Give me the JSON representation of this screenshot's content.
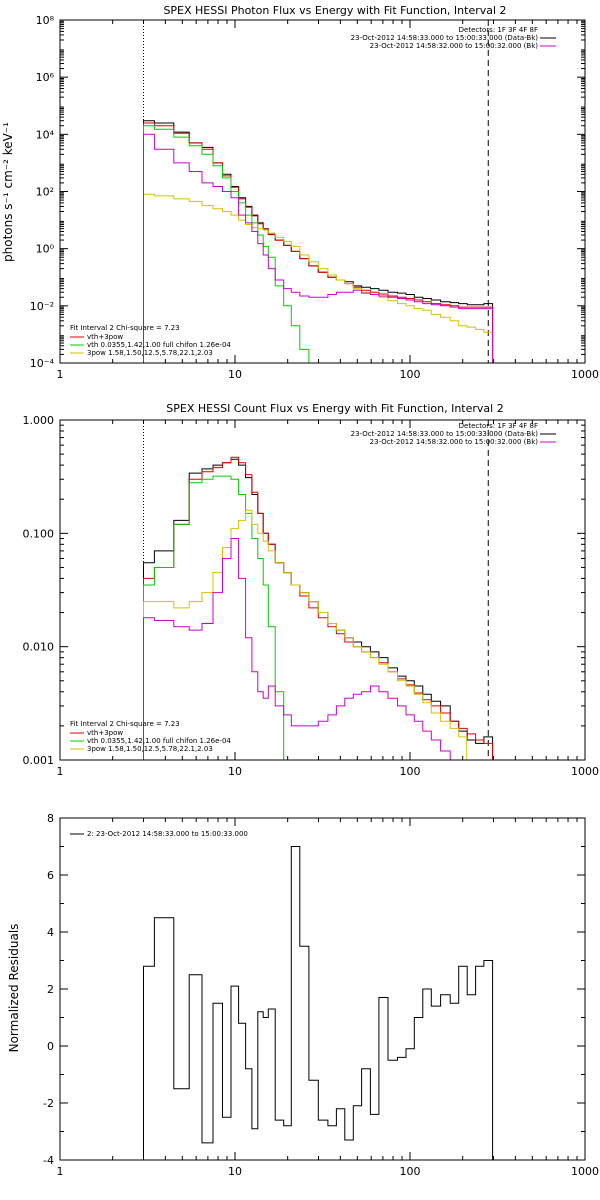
{
  "charts": [
    {
      "type": "line",
      "title": "SPEX HESSI Photon Flux vs Energy with Fit Function, Interval 2",
      "xlabel": "",
      "ylabel": "photons s⁻¹ cm⁻² keV⁻¹",
      "xscale": "log",
      "yscale": "log",
      "xlim": [
        1,
        1000
      ],
      "ylim": [
        0.0001,
        100000000
      ],
      "xticks": [
        "1",
        "10",
        "100",
        "1000"
      ],
      "yticks": [
        "10⁻⁴",
        "10⁻²",
        "10⁰",
        "10²",
        "10⁴",
        "10⁶",
        "10⁸"
      ],
      "yticks_values": [
        0.0001,
        0.01,
        1,
        100,
        10000,
        1000000,
        100000000
      ],
      "vlines": [
        3,
        280
      ],
      "legend_right": {
        "position": "top-right",
        "lines": [
          "Detectors: 1F 3F 4F 8F",
          "23-Oct-2012 14:58:33.000 to 15:00:33.000 (Data-Bk)",
          "23-Oct-2012 14:58:32.000 to 15:00:32.000 (Bk)"
        ]
      },
      "legend_left": {
        "position": "bottom-left",
        "header": "Fit Interval 2   Chi-square = 7.23",
        "lines": [
          "vth+3pow",
          "vth 0.0355,1.42,1.00  full chifon 1.26e-04",
          "3pow 1.58,1.50,12.5,5.78,22.1,2.03"
        ]
      },
      "series": [
        {
          "name": "Data-Bk",
          "color": "#000000",
          "x": [
            3,
            4,
            5,
            6,
            7,
            8,
            9,
            10,
            11,
            12,
            13,
            14,
            15,
            16,
            18,
            20,
            22,
            25,
            28,
            32,
            36,
            40,
            45,
            50,
            56,
            63,
            70,
            80,
            90,
            100,
            112,
            125,
            140,
            160,
            180,
            200,
            225,
            250,
            280
          ],
          "y": [
            30000,
            25000,
            12000,
            5000,
            3500,
            1000,
            400,
            150,
            60,
            30,
            15,
            8,
            5,
            3.2,
            2,
            1.3,
            0.8,
            0.45,
            0.25,
            0.15,
            0.1,
            0.08,
            0.07,
            0.05,
            0.045,
            0.04,
            0.035,
            0.03,
            0.028,
            0.025,
            0.02,
            0.018,
            0.016,
            0.014,
            0.013,
            0.012,
            0.011,
            0.011,
            0.012
          ]
        },
        {
          "name": "vth+3pow",
          "color": "#dd0000",
          "x": [
            3,
            4,
            5,
            6,
            7,
            8,
            9,
            10,
            11,
            12,
            13,
            14,
            15,
            16,
            18,
            20,
            22,
            25,
            28,
            32,
            36,
            40,
            45,
            50,
            56,
            63,
            70,
            80,
            90,
            100,
            112,
            125,
            140,
            160,
            180,
            200,
            225,
            250,
            280
          ],
          "y": [
            25000,
            20000,
            11000,
            5000,
            3000,
            1000,
            350,
            140,
            55,
            28,
            14,
            7.5,
            5,
            3.1,
            2,
            1.3,
            0.8,
            0.45,
            0.25,
            0.15,
            0.1,
            0.08,
            0.06,
            0.045,
            0.035,
            0.03,
            0.026,
            0.022,
            0.02,
            0.018,
            0.016,
            0.014,
            0.012,
            0.011,
            0.01,
            0.009,
            0.009,
            0.009,
            0.009
          ]
        },
        {
          "name": "vth",
          "color": "#00cc00",
          "x": [
            3,
            4,
            5,
            6,
            7,
            8,
            9,
            10,
            11,
            12,
            13,
            14,
            15,
            16,
            18,
            20,
            22,
            25,
            28
          ],
          "y": [
            20000,
            15000,
            8000,
            4000,
            2000,
            800,
            300,
            100,
            40,
            15,
            8,
            3,
            1.2,
            0.5,
            0.05,
            0.01,
            0.002,
            0.0003,
            0.0001
          ]
        },
        {
          "name": "3pow",
          "color": "#d2c200",
          "x": [
            3,
            4,
            5,
            6,
            7,
            8,
            9,
            10,
            11,
            12,
            13,
            14,
            15,
            16,
            18,
            20,
            22,
            25,
            28,
            32,
            36,
            40,
            45,
            50,
            56,
            63,
            70,
            80,
            90,
            100,
            112,
            125,
            140,
            160,
            180,
            200,
            225,
            250,
            280
          ],
          "y": [
            80,
            70,
            55,
            45,
            32,
            25,
            20,
            15,
            10,
            7,
            5.5,
            5,
            4.5,
            3.5,
            2.5,
            1.8,
            1.2,
            0.6,
            0.35,
            0.2,
            0.12,
            0.08,
            0.06,
            0.04,
            0.03,
            0.025,
            0.02,
            0.015,
            0.012,
            0.01,
            0.008,
            0.007,
            0.005,
            0.004,
            0.003,
            0.002,
            0.0018,
            0.0015,
            0.0012
          ]
        },
        {
          "name": "Bk",
          "color": "#cc00cc",
          "x": [
            3,
            4,
            5,
            6,
            7,
            8,
            9,
            10,
            11,
            12,
            13,
            14,
            15,
            16,
            18,
            20,
            22,
            25,
            28,
            32,
            36,
            40,
            45,
            50,
            56,
            63,
            70,
            80,
            90,
            100,
            112,
            125,
            140,
            160,
            180,
            200,
            225,
            250,
            280
          ],
          "y": [
            10000,
            3000,
            1000,
            500,
            200,
            150,
            100,
            60,
            15,
            8,
            4,
            1.5,
            0.6,
            0.2,
            0.08,
            0.04,
            0.03,
            0.022,
            0.02,
            0.02,
            0.025,
            0.03,
            0.03,
            0.035,
            0.028,
            0.025,
            0.022,
            0.02,
            0.018,
            0.016,
            0.014,
            0.012,
            0.011,
            0.01,
            0.009,
            0.008,
            0.008,
            0.008,
            0.008
          ]
        }
      ]
    },
    {
      "type": "line",
      "title": "SPEX HESSI Count Flux vs Energy with Fit Function, Interval 2",
      "xlabel": "",
      "ylabel": "",
      "xscale": "log",
      "yscale": "log",
      "xlim": [
        1,
        1000
      ],
      "ylim": [
        0.001,
        1
      ],
      "xticks": [
        "1",
        "10",
        "100",
        "1000"
      ],
      "yticks": [
        "0.001",
        "0.010",
        "0.100",
        "1.000"
      ],
      "yticks_values": [
        0.001,
        0.01,
        0.1,
        1
      ],
      "vlines": [
        3,
        280
      ],
      "legend_right": {
        "position": "top-right",
        "lines": [
          "Detectors: 1F 3F 4F 8F",
          "23-Oct-2012 14:58:33.000 to 15:00:33.000 (Data-Bk)",
          "23-Oct-2012 14:58:32.000 to 15:00:32.000 (Bk)"
        ]
      },
      "legend_left": {
        "position": "bottom-left",
        "header": "Fit Interval 2   Chi-square = 7.23",
        "lines": [
          "vth+3pow",
          "vth 0.0355,1.42,1.00  full chifon 1.26e-04",
          "3pow 1.58,1.50,12.5,5.78,22.1,2.03"
        ]
      },
      "series": [
        {
          "name": "Data-Bk",
          "color": "#000000",
          "x": [
            3,
            4,
            5,
            6,
            7,
            8,
            9,
            10,
            11,
            12,
            13,
            14,
            15,
            16,
            18,
            20,
            22,
            25,
            28,
            32,
            36,
            40,
            45,
            50,
            56,
            63,
            70,
            80,
            90,
            100,
            112,
            125,
            140,
            160,
            180,
            200,
            225,
            250,
            280
          ],
          "y": [
            0.055,
            0.07,
            0.13,
            0.34,
            0.37,
            0.4,
            0.42,
            0.45,
            0.4,
            0.31,
            0.22,
            0.15,
            0.1,
            0.08,
            0.055,
            0.045,
            0.035,
            0.03,
            0.025,
            0.02,
            0.016,
            0.014,
            0.012,
            0.011,
            0.01,
            0.009,
            0.008,
            0.0065,
            0.0055,
            0.005,
            0.0045,
            0.0038,
            0.0033,
            0.003,
            0.0022,
            0.0018,
            0.0015,
            0.0014,
            0.0016
          ]
        },
        {
          "name": "vth+3pow",
          "color": "#dd0000",
          "x": [
            3,
            4,
            5,
            6,
            7,
            8,
            9,
            10,
            11,
            12,
            13,
            14,
            15,
            16,
            18,
            20,
            22,
            25,
            28,
            32,
            36,
            40,
            45,
            50,
            56,
            63,
            70,
            80,
            90,
            100,
            112,
            125,
            140,
            160,
            180,
            200,
            225,
            250,
            280
          ],
          "y": [
            0.04,
            0.05,
            0.12,
            0.3,
            0.35,
            0.38,
            0.42,
            0.47,
            0.42,
            0.33,
            0.23,
            0.15,
            0.1,
            0.08,
            0.055,
            0.045,
            0.035,
            0.028,
            0.022,
            0.018,
            0.015,
            0.013,
            0.011,
            0.01,
            0.009,
            0.008,
            0.0072,
            0.006,
            0.0052,
            0.0046,
            0.0039,
            0.0034,
            0.003,
            0.0026,
            0.0022,
            0.0019,
            0.0017,
            0.0015,
            0.0014
          ]
        },
        {
          "name": "vth",
          "color": "#00cc00",
          "x": [
            3,
            4,
            5,
            6,
            7,
            8,
            9,
            10,
            11,
            12,
            13,
            14,
            15,
            16,
            18,
            20
          ],
          "y": [
            0.035,
            0.05,
            0.12,
            0.28,
            0.3,
            0.32,
            0.32,
            0.3,
            0.22,
            0.15,
            0.09,
            0.06,
            0.035,
            0.015,
            0.004,
            0.001
          ]
        },
        {
          "name": "3pow",
          "color": "#d2c200",
          "x": [
            3,
            4,
            5,
            6,
            7,
            8,
            9,
            10,
            11,
            12,
            13,
            14,
            15,
            16,
            18,
            20,
            22,
            25,
            28,
            32,
            36,
            40,
            45,
            50,
            56,
            63,
            70,
            80,
            90,
            100,
            112,
            125,
            140,
            160,
            180,
            200
          ],
          "y": [
            0.025,
            0.025,
            0.022,
            0.025,
            0.03,
            0.045,
            0.075,
            0.11,
            0.13,
            0.16,
            0.12,
            0.1,
            0.085,
            0.07,
            0.055,
            0.045,
            0.035,
            0.03,
            0.025,
            0.02,
            0.016,
            0.014,
            0.012,
            0.01,
            0.009,
            0.008,
            0.007,
            0.006,
            0.005,
            0.0045,
            0.0038,
            0.0032,
            0.0026,
            0.0022,
            0.0019,
            0.0016
          ]
        },
        {
          "name": "Bk",
          "color": "#cc00cc",
          "x": [
            3,
            4,
            5,
            6,
            7,
            8,
            9,
            10,
            11,
            12,
            13,
            14,
            15,
            16,
            18,
            20,
            22,
            25,
            28,
            32,
            36,
            40,
            45,
            50,
            56,
            63,
            70,
            80,
            90,
            100,
            112,
            125,
            140,
            160,
            180,
            200
          ],
          "y": [
            0.018,
            0.017,
            0.015,
            0.014,
            0.016,
            0.03,
            0.06,
            0.09,
            0.04,
            0.012,
            0.006,
            0.004,
            0.0035,
            0.0045,
            0.003,
            0.0025,
            0.002,
            0.002,
            0.002,
            0.0022,
            0.0025,
            0.003,
            0.0035,
            0.0038,
            0.004,
            0.0045,
            0.004,
            0.0035,
            0.003,
            0.0025,
            0.0022,
            0.0018,
            0.0015,
            0.0012,
            0.001,
            0.001
          ]
        }
      ]
    },
    {
      "type": "line",
      "title": "",
      "xlabel": "",
      "ylabel": "Normalized Residuals",
      "xscale": "log",
      "yscale": "linear",
      "xlim": [
        1,
        1000
      ],
      "ylim": [
        -4,
        8
      ],
      "xticks": [
        "1",
        "10",
        "100",
        "1000"
      ],
      "yticks": [
        "-4",
        "-2",
        "0",
        "2",
        "4",
        "6",
        "8"
      ],
      "yticks_values": [
        -4,
        -2,
        0,
        2,
        4,
        6,
        8
      ],
      "vlines": [],
      "legend_right": null,
      "legend_left": {
        "position": "top-left",
        "header": "",
        "lines": [
          "2: 23-Oct-2012 14:58:33.000 to 15:00:33.000"
        ]
      },
      "series": [
        {
          "name": "2: 23-Oct-2012 14:58:33.000 to 15:00:33.000",
          "color": "#000000",
          "x": [
            3,
            4,
            5,
            6,
            7,
            8,
            9,
            10,
            11,
            12,
            13,
            14,
            15,
            16,
            18,
            20,
            22,
            25,
            28,
            32,
            36,
            40,
            45,
            50,
            56,
            63,
            70,
            80,
            90,
            100,
            112,
            125,
            140,
            160,
            180,
            200,
            225,
            250,
            280
          ],
          "y": [
            2.8,
            4.5,
            -1.5,
            2.5,
            -3.4,
            1.5,
            -2.5,
            2.1,
            0.8,
            -0.8,
            -2.9,
            1.2,
            1,
            1.3,
            -2.6,
            -2.8,
            7,
            3.5,
            -1.2,
            -2.6,
            -2.8,
            -2.2,
            -3.3,
            -2.1,
            -0.8,
            -2.4,
            1.7,
            -0.5,
            -0.4,
            -0.1,
            1,
            2,
            1.4,
            1.8,
            1.5,
            2.8,
            1.8,
            2.8,
            3
          ]
        }
      ]
    }
  ]
}
